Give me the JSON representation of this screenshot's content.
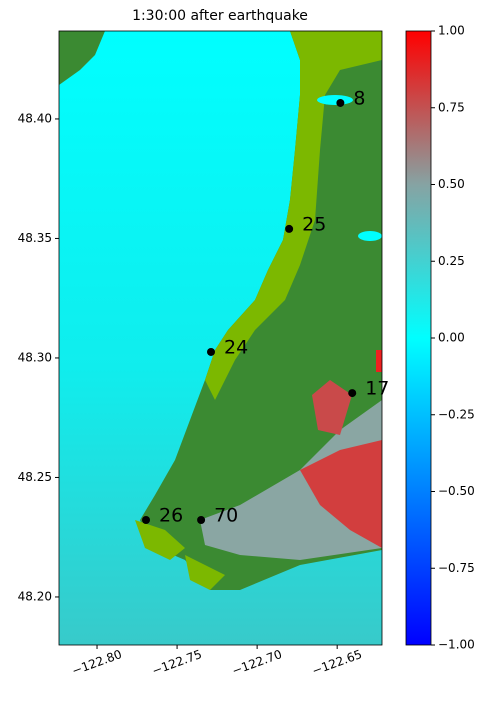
{
  "chart_data": {
    "type": "scatter",
    "title": "1:30:00 after earthquake",
    "x": [
      -122.648,
      -122.68,
      -122.7288,
      -122.6406,
      -122.7694,
      -122.735
    ],
    "y": [
      48.4067,
      48.354,
      48.3025,
      48.2853,
      48.2322,
      48.2322
    ],
    "point_labels": [
      "8",
      "25",
      "24",
      "17",
      "26",
      "70"
    ],
    "color": "#000000",
    "xlim": [
      -122.82375,
      -122.622
    ],
    "ylim": [
      48.1799,
      48.4368
    ],
    "xticks": [
      {
        "value": -122.8,
        "label": "−122.80"
      },
      {
        "value": -122.75,
        "label": "−122.75"
      },
      {
        "value": -122.7,
        "label": "−122.70"
      },
      {
        "value": -122.65,
        "label": "−122.65"
      }
    ],
    "yticks": [
      {
        "value": 48.2,
        "label": "48.20"
      },
      48.25,
      {
        "value": 48.3,
        "label": "48.30"
      },
      48.35,
      {
        "value": 48.4,
        "label": "48.40"
      }
    ],
    "colorbar": {
      "lim": [
        -1,
        1
      ],
      "colors": [
        "#0000ff",
        "#0080ff",
        "#00ffff",
        "#86a3a3",
        "#ff0000"
      ],
      "ticks": [
        {
          "value": -1,
          "label": "−1.00"
        },
        {
          "value": -0.75,
          "label": "−0.75"
        },
        {
          "value": -0.5,
          "label": "−0.50"
        },
        {
          "value": -0.25,
          "label": "−0.25"
        },
        {
          "value": 0,
          "label": "0.00"
        },
        {
          "value": 0.25,
          "label": "0.25"
        },
        {
          "value": 0.5,
          "label": "0.50"
        },
        {
          "value": 0.75,
          "label": "0.75"
        },
        {
          "value": 1,
          "label": "1.00"
        }
      ]
    }
  }
}
